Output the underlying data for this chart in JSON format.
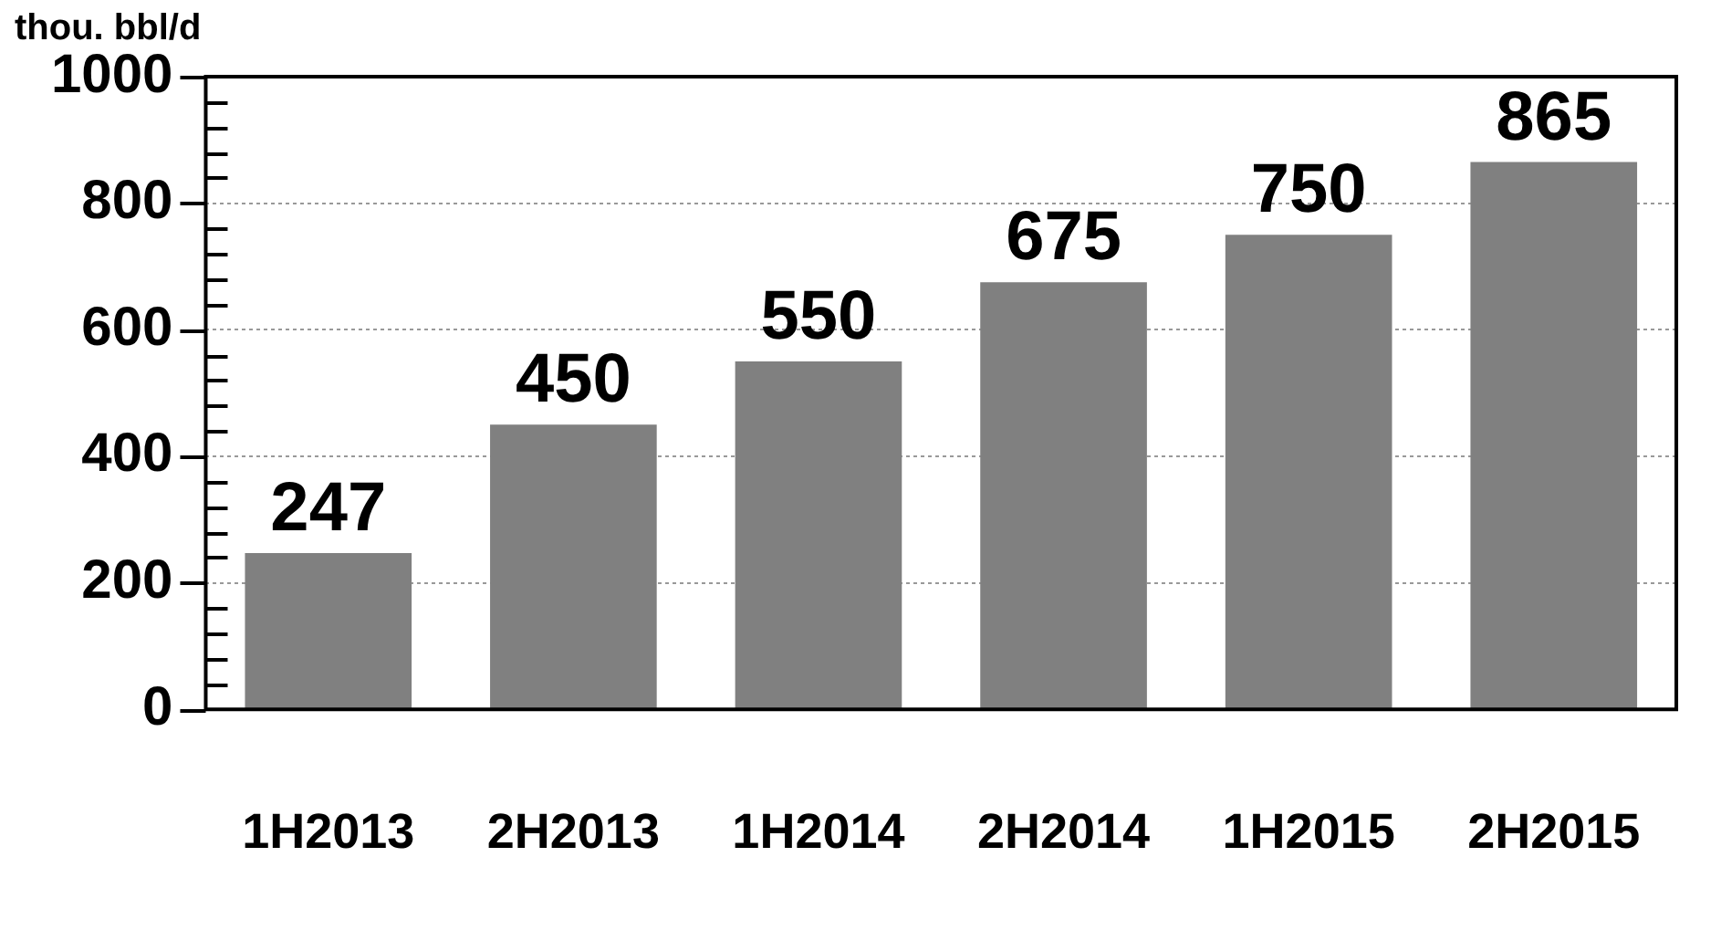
{
  "chart_data": {
    "type": "bar",
    "ylabel": "thou. bbl/d",
    "categories": [
      "1H2013",
      "2H2013",
      "1H2014",
      "2H2014",
      "1H2015",
      "2H2015"
    ],
    "values": [
      247,
      450,
      550,
      675,
      750,
      865
    ],
    "color": "#808080",
    "ylim": [
      0,
      1000
    ],
    "yticks": [
      0,
      {
        "value": 40,
        "label": null
      },
      {
        "value": 80,
        "label": null
      },
      {
        "value": 120,
        "label": null
      },
      {
        "value": 160,
        "label": null
      },
      200,
      {
        "value": 240,
        "label": null
      },
      {
        "value": 280,
        "label": null
      },
      {
        "value": 320,
        "label": null
      },
      {
        "value": 360,
        "label": null
      },
      400,
      {
        "value": 440,
        "label": null
      },
      {
        "value": 480,
        "label": null
      },
      {
        "value": 520,
        "label": null
      },
      {
        "value": 560,
        "label": null
      },
      600,
      {
        "value": 640,
        "label": null
      },
      {
        "value": 680,
        "label": null
      },
      {
        "value": 720,
        "label": null
      },
      {
        "value": 760,
        "label": null
      },
      800,
      {
        "value": 840,
        "label": null
      },
      {
        "value": 880,
        "label": null
      },
      {
        "value": 920,
        "label": null
      },
      {
        "value": 960,
        "label": null
      },
      1000
    ],
    "grid": "y",
    "data_labels": true,
    "legend": false
  }
}
